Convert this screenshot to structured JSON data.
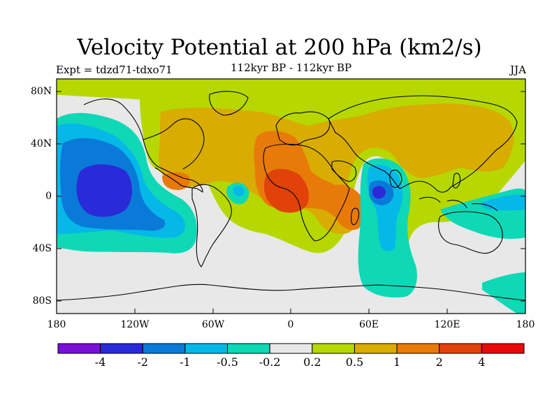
{
  "title": "Velocity Potential at 200 hPa (km2/s)",
  "left_label": "Expt = tdzd71-tdxo71",
  "center_label": "112kyr BP - 112kyr BP",
  "right_label": "JJA",
  "map": {
    "lon_range": [
      -180,
      180
    ],
    "lat_range": [
      -90,
      90
    ],
    "x_ticks": [
      "180",
      "120W",
      "60W",
      "0",
      "60E",
      "120E",
      "180"
    ],
    "y_ticks": [
      "80N",
      "40N",
      "0",
      "40S",
      "80S"
    ]
  },
  "colorbar": {
    "colors": [
      "#7a0fd6",
      "#2a2ad8",
      "#0a7ad8",
      "#05b8e8",
      "#0fd8b6",
      "#e8e8e8",
      "#b6d800",
      "#d8ac00",
      "#e87a0a",
      "#e0420a",
      "#e80a0a"
    ],
    "labels": [
      "-4",
      "-2",
      "-1",
      "-0.5",
      "-0.2",
      "0.2",
      "0.5",
      "1",
      "2",
      "4"
    ]
  },
  "colors": {
    "neutral": "#e8e8e8",
    "pos_weak": "#b6d800",
    "pos_mid": "#d8ac00",
    "pos_strong": "#e87a0a",
    "pos_max": "#e0420a",
    "neg_weak": "#0fd8b6",
    "neg_mid": "#05b8e8",
    "neg_strong": "#0a7ad8",
    "neg_max": "#2a2ad8"
  }
}
